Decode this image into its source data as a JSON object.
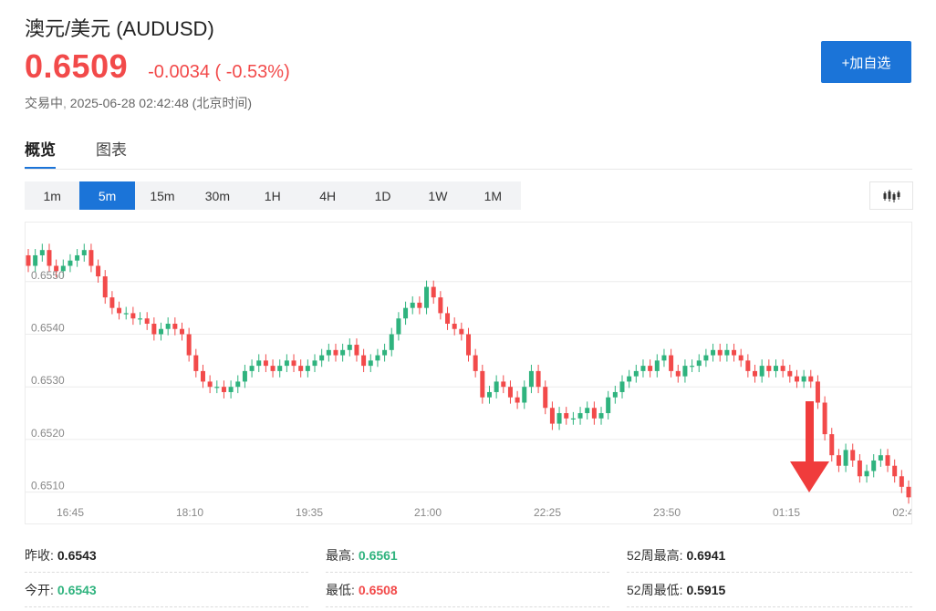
{
  "header": {
    "title": "澳元/美元 (AUDUSD)",
    "price": "0.6509",
    "change": "-0.0034 ( -0.53%)",
    "status": "交易中",
    "datetime": "2025-06-28 02:42:48",
    "timezone": "(北京时间)",
    "watch_button": "+加自选"
  },
  "tabs": [
    {
      "label": "概览",
      "active": true
    },
    {
      "label": "图表",
      "active": false
    }
  ],
  "periods": [
    {
      "label": "1m",
      "active": false
    },
    {
      "label": "5m",
      "active": true
    },
    {
      "label": "15m",
      "active": false
    },
    {
      "label": "30m",
      "active": false
    },
    {
      "label": "1H",
      "active": false
    },
    {
      "label": "4H",
      "active": false
    },
    {
      "label": "1D",
      "active": false
    },
    {
      "label": "1W",
      "active": false
    },
    {
      "label": "1M",
      "active": false
    }
  ],
  "chart_icon": "candlestick-icon",
  "colors": {
    "up": "#2fb37e",
    "down": "#f24a4a",
    "accent": "#1b74d8",
    "annotation": "#f03c3c"
  },
  "chart_data": {
    "type": "candlestick",
    "interval": "5m",
    "ylim": [
      0.6508,
      0.6562
    ],
    "y_ticks": [
      "0.6550",
      "0.6540",
      "0.6530",
      "0.6520",
      "0.6510"
    ],
    "x_ticks": [
      "16:45",
      "18:10",
      "19:35",
      "21:00",
      "22:25",
      "23:50",
      "01:15",
      "02:4"
    ],
    "grid": true,
    "annotation": "down-arrow near 01:15",
    "closes": [
      0.6553,
      0.6555,
      0.6556,
      0.6553,
      0.6552,
      0.6553,
      0.6554,
      0.6555,
      0.6556,
      0.6553,
      0.6551,
      0.6547,
      0.6545,
      0.6544,
      0.6544,
      0.6543,
      0.6543,
      0.6542,
      0.654,
      0.6541,
      0.6542,
      0.6541,
      0.654,
      0.6536,
      0.6533,
      0.6531,
      0.653,
      0.653,
      0.6529,
      0.653,
      0.6531,
      0.6533,
      0.6534,
      0.6535,
      0.6534,
      0.6533,
      0.6534,
      0.6535,
      0.6534,
      0.6533,
      0.6534,
      0.6535,
      0.6536,
      0.6537,
      0.6536,
      0.6537,
      0.6538,
      0.6536,
      0.6534,
      0.6535,
      0.6536,
      0.6537,
      0.654,
      0.6543,
      0.6545,
      0.6546,
      0.6545,
      0.6549,
      0.6547,
      0.6544,
      0.6542,
      0.6541,
      0.654,
      0.6536,
      0.6533,
      0.6528,
      0.6529,
      0.6531,
      0.653,
      0.6528,
      0.6527,
      0.653,
      0.6533,
      0.653,
      0.6526,
      0.6523,
      0.6525,
      0.6524,
      0.6524,
      0.6525,
      0.6526,
      0.6524,
      0.6525,
      0.6528,
      0.6529,
      0.6531,
      0.6532,
      0.6533,
      0.6534,
      0.6533,
      0.6535,
      0.6536,
      0.6533,
      0.6532,
      0.6534,
      0.6534,
      0.6535,
      0.6536,
      0.6537,
      0.6536,
      0.6537,
      0.6536,
      0.6535,
      0.6533,
      0.6532,
      0.6534,
      0.6533,
      0.6534,
      0.6533,
      0.6532,
      0.6531,
      0.6532,
      0.6531,
      0.6527,
      0.6521,
      0.6517,
      0.6515,
      0.6518,
      0.6516,
      0.6513,
      0.6514,
      0.6516,
      0.6517,
      0.6515,
      0.6513,
      0.6511,
      0.6509
    ]
  },
  "stats": [
    {
      "label": "昨收:",
      "value": "0.6543",
      "tone": "plain"
    },
    {
      "label": "最高:",
      "value": "0.6561",
      "tone": "up"
    },
    {
      "label": "52周最高:",
      "value": "0.6941",
      "tone": "plain"
    },
    {
      "label": "今开:",
      "value": "0.6543",
      "tone": "up"
    },
    {
      "label": "最低:",
      "value": "0.6508",
      "tone": "down"
    },
    {
      "label": "52周最低:",
      "value": "0.5915",
      "tone": "plain"
    }
  ]
}
